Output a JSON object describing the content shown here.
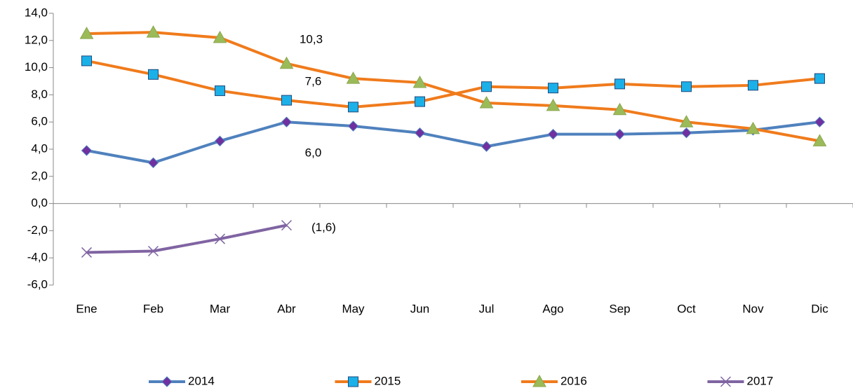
{
  "chart_data": {
    "type": "line",
    "categories": [
      "Ene",
      "Feb",
      "Mar",
      "Abr",
      "May",
      "Jun",
      "Jul",
      "Ago",
      "Sep",
      "Oct",
      "Nov",
      "Dic"
    ],
    "ylim": [
      -6,
      14
    ],
    "yticks": [
      {
        "value": -6,
        "label": "-6,0"
      },
      {
        "value": -4,
        "label": "-4,0"
      },
      {
        "value": -2,
        "label": "-2,0"
      },
      {
        "value": 0,
        "label": "0,0"
      },
      {
        "value": 2,
        "label": "2,0"
      },
      {
        "value": 4,
        "label": "4,0"
      },
      {
        "value": 6,
        "label": "6,0"
      },
      {
        "value": 8,
        "label": "8,0"
      },
      {
        "value": 10,
        "label": "10,0"
      },
      {
        "value": 12,
        "label": "12,0"
      },
      {
        "value": 14,
        "label": "14,0"
      }
    ],
    "legend": "bottom",
    "series": [
      {
        "name": "2014",
        "color": "#4f81bd",
        "marker": "diamond",
        "marker_color": "#7030a0",
        "values": [
          3.9,
          3.0,
          4.6,
          6.0,
          5.7,
          5.2,
          4.2,
          5.1,
          5.1,
          5.2,
          5.4,
          6.0
        ],
        "value_labels": [
          null,
          null,
          null,
          "6,0",
          null,
          null,
          null,
          null,
          null,
          null,
          null,
          null
        ]
      },
      {
        "name": "2015",
        "color": "#f07b1c",
        "marker": "square",
        "marker_color": "#1cb0e8",
        "values": [
          10.5,
          9.5,
          8.3,
          7.6,
          7.1,
          7.5,
          8.6,
          8.5,
          8.8,
          8.6,
          8.7,
          9.2
        ],
        "value_labels": [
          null,
          null,
          null,
          "7,6",
          null,
          null,
          null,
          null,
          null,
          null,
          null,
          null
        ]
      },
      {
        "name": "2016",
        "color": "#f07b1c",
        "marker": "triangle",
        "marker_color": "#9bbb59",
        "values": [
          12.5,
          12.6,
          12.2,
          10.3,
          9.2,
          8.9,
          7.4,
          7.2,
          6.9,
          6.0,
          5.5,
          4.6
        ],
        "value_labels": [
          null,
          null,
          null,
          "10,3",
          null,
          null,
          null,
          null,
          null,
          null,
          null,
          null
        ]
      },
      {
        "name": "2017",
        "color": "#8064a2",
        "marker": "x",
        "marker_color": "#8064a2",
        "values": [
          -3.6,
          -3.5,
          -2.6,
          -1.6,
          null,
          null,
          null,
          null,
          null,
          null,
          null,
          null
        ],
        "value_labels": [
          null,
          null,
          null,
          "(1,6)",
          null,
          null,
          null,
          null,
          null,
          null,
          null,
          null
        ]
      }
    ]
  }
}
